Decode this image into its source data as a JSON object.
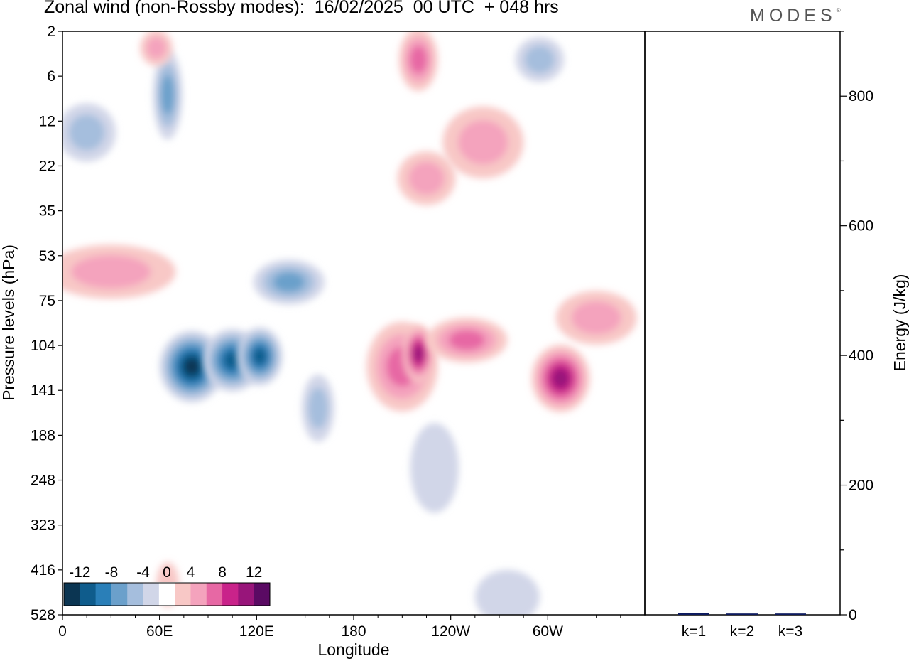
{
  "header": {
    "title": "Zonal wind (non-Rossby modes):  16/02/2025  00 UTC  + 048 hrs",
    "logo": "MODES"
  },
  "palette": {
    "neg": [
      "#0b3552",
      "#0f5c8c",
      "#2a7fb8",
      "#6ba0cb",
      "#a5bedd",
      "#d1d6e8"
    ],
    "zero": "#ffffff",
    "pos": [
      "#f8c8c6",
      "#f4a3bd",
      "#e768a4",
      "#c9238a",
      "#98157a",
      "#5a0a63"
    ]
  },
  "chart_data": [
    {
      "type": "heatmap",
      "xlabel": "Longitude",
      "ylabel": "Pressure levels (hPa)",
      "x_ticks": [
        "0",
        "60E",
        "120E",
        "180",
        "120W",
        "60W"
      ],
      "y_ticks": [
        "2",
        "6",
        "12",
        "22",
        "35",
        "53",
        "75",
        "104",
        "141",
        "188",
        "248",
        "323",
        "416",
        "528"
      ],
      "xlim": [
        0,
        360
      ],
      "colorbar": {
        "labels": [
          "-12",
          "-8",
          "-4",
          "0",
          "4",
          "8",
          "12"
        ],
        "bounds": [
          -14,
          -12,
          -10,
          -8,
          -6,
          -4,
          -2,
          2,
          4,
          6,
          8,
          10,
          12,
          14
        ]
      },
      "features": [
        {
          "lon": 80,
          "level": 120,
          "value": -13,
          "extent_lon": 20,
          "extent_levels": 1.6
        },
        {
          "lon": 105,
          "level": 115,
          "value": -11,
          "extent_lon": 18,
          "extent_levels": 1.4
        },
        {
          "lon": 122,
          "level": 112,
          "value": -11,
          "extent_lon": 14,
          "extent_levels": 1.3
        },
        {
          "lon": 140,
          "level": 65,
          "value": -8,
          "extent_lon": 22,
          "extent_levels": 1.0
        },
        {
          "lon": 158,
          "level": 158,
          "value": -6,
          "extent_lon": 10,
          "extent_levels": 1.5
        },
        {
          "lon": 65,
          "level": 8,
          "value": -7,
          "extent_lon": 9,
          "extent_levels": 2.0
        },
        {
          "lon": 15,
          "level": 14,
          "value": -5,
          "extent_lon": 18,
          "extent_levels": 1.3
        },
        {
          "lon": 30,
          "level": 60,
          "value": 5,
          "extent_lon": 40,
          "extent_levels": 1.2
        },
        {
          "lon": 210,
          "level": 120,
          "value": 8,
          "extent_lon": 22,
          "extent_levels": 2.0
        },
        {
          "lon": 220,
          "level": 110,
          "value": 11,
          "extent_lon": 10,
          "extent_levels": 1.3
        },
        {
          "lon": 250,
          "level": 100,
          "value": 7,
          "extent_lon": 25,
          "extent_levels": 1.0
        },
        {
          "lon": 308,
          "level": 130,
          "value": 11,
          "extent_lon": 18,
          "extent_levels": 1.5
        },
        {
          "lon": 330,
          "level": 85,
          "value": 6,
          "extent_lon": 25,
          "extent_levels": 1.2
        },
        {
          "lon": 220,
          "level": 4,
          "value": 8,
          "extent_lon": 12,
          "extent_levels": 1.4
        },
        {
          "lon": 260,
          "level": 16,
          "value": 6,
          "extent_lon": 25,
          "extent_levels": 1.6
        },
        {
          "lon": 225,
          "level": 25,
          "value": 5,
          "extent_lon": 18,
          "extent_levels": 1.2
        },
        {
          "lon": 230,
          "level": 230,
          "value": -4,
          "extent_lon": 15,
          "extent_levels": 2.0
        },
        {
          "lon": 275,
          "level": 480,
          "value": -3,
          "extent_lon": 20,
          "extent_levels": 1.2
        },
        {
          "lon": 295,
          "level": 4,
          "value": -5,
          "extent_lon": 15,
          "extent_levels": 1.0
        },
        {
          "lon": 58,
          "level": 3,
          "value": 5,
          "extent_lon": 10,
          "extent_levels": 0.8
        },
        {
          "lon": 65,
          "level": 450,
          "value": 4,
          "extent_lon": 7,
          "extent_levels": 1.0
        }
      ]
    },
    {
      "type": "bar",
      "categories": [
        "k=1",
        "k=2",
        "k=3"
      ],
      "values": [
        3,
        2,
        2
      ],
      "ylabel": "Energy (J/kg)",
      "ylim": [
        0,
        900
      ],
      "y_ticks": [
        "0",
        "200",
        "400",
        "600",
        "800"
      ]
    }
  ]
}
